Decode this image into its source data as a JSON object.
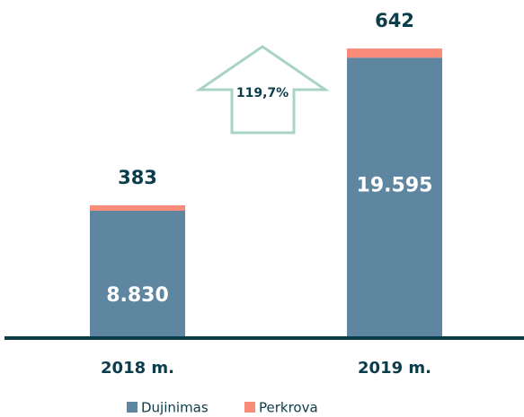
{
  "chart_data": {
    "type": "stacked_bar",
    "categories": [
      "2018 m.",
      "2019 m."
    ],
    "series": [
      {
        "name": "Dujinimas",
        "color": "#5f86a0",
        "values": [
          8830,
          19595
        ],
        "value_labels": [
          "8.830",
          "19.595"
        ]
      },
      {
        "name": "Perkrova",
        "color": "#f98b7b",
        "values": [
          383,
          642
        ]
      }
    ],
    "annotation": "119,7%",
    "ylim": [
      0,
      21000
    ]
  }
}
